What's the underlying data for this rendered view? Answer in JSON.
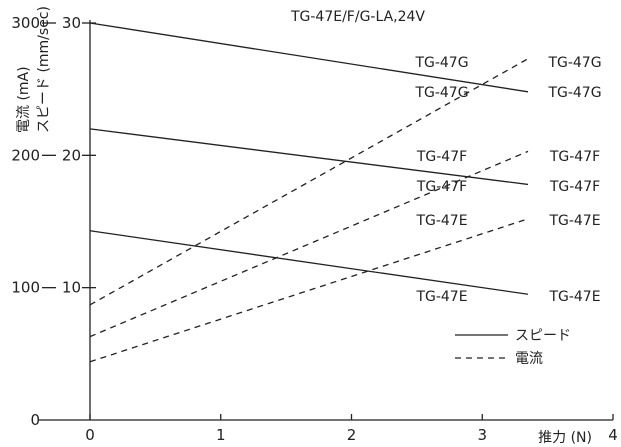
{
  "chart_data": {
    "type": "line",
    "title": "TG-47E/F/G-LA,24V",
    "xlabel": "推力 (N)",
    "ylabel_left": "電流 (mA)",
    "ylabel_right": "スピード (mm/sec)",
    "xlim": [
      0,
      4
    ],
    "ylim_current": [
      0,
      300
    ],
    "ylim_speed": [
      0,
      30
    ],
    "x_ticks": [
      "0",
      "1",
      "2",
      "3",
      "4"
    ],
    "y_ticks_current": [
      "0",
      "100",
      "200",
      "300"
    ],
    "y_ticks_speed": [
      "10",
      "20",
      "30"
    ],
    "grid": false,
    "legend": {
      "position": "bottom-right",
      "entries": [
        {
          "label": "スピード",
          "style": "solid"
        },
        {
          "label": "電流",
          "style": "dashed"
        }
      ]
    },
    "series": [
      {
        "name": "TG-47G",
        "kind": "speed",
        "unit": "mm/sec",
        "style": "solid",
        "x": [
          0,
          3.35
        ],
        "y": [
          30.0,
          24.8
        ]
      },
      {
        "name": "TG-47F",
        "kind": "speed",
        "unit": "mm/sec",
        "style": "solid",
        "x": [
          0,
          3.35
        ],
        "y": [
          22.0,
          17.8
        ]
      },
      {
        "name": "TG-47E",
        "kind": "speed",
        "unit": "mm/sec",
        "style": "solid",
        "x": [
          0,
          3.35
        ],
        "y": [
          14.3,
          9.5
        ]
      },
      {
        "name": "TG-47G",
        "kind": "current",
        "unit": "mA",
        "style": "dashed",
        "x": [
          0,
          3.35
        ],
        "y": [
          87,
          273
        ]
      },
      {
        "name": "TG-47F",
        "kind": "current",
        "unit": "mA",
        "style": "dashed",
        "x": [
          0,
          3.35
        ],
        "y": [
          63,
          203
        ]
      },
      {
        "name": "TG-47E",
        "kind": "current",
        "unit": "mA",
        "style": "dashed",
        "x": [
          0,
          3.35
        ],
        "y": [
          44,
          152
        ]
      }
    ],
    "series_labels": [
      {
        "text": "TG-47G",
        "near": "speed",
        "side": "left"
      },
      {
        "text": "TG-47G",
        "near": "current",
        "side": "left"
      },
      {
        "text": "TG-47G",
        "near": "current",
        "side": "right"
      },
      {
        "text": "TG-47G",
        "near": "speed",
        "side": "right"
      },
      {
        "text": "TG-47F",
        "near": "speed",
        "side": "left"
      },
      {
        "text": "TG-47F",
        "near": "current",
        "side": "left"
      },
      {
        "text": "TG-47F",
        "near": "current",
        "side": "right"
      },
      {
        "text": "TG-47F",
        "near": "speed",
        "side": "right"
      },
      {
        "text": "TG-47E",
        "near": "speed",
        "side": "left"
      },
      {
        "text": "TG-47E",
        "near": "current",
        "side": "right"
      },
      {
        "text": "TG-47E",
        "near": "speed",
        "side": "left"
      },
      {
        "text": "TG-47E",
        "near": "speed",
        "side": "right"
      }
    ]
  }
}
